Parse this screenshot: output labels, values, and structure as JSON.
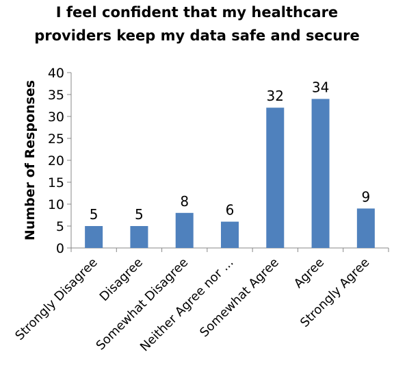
{
  "chart_data": {
    "type": "bar",
    "title_lines": [
      "I feel confident that my healthcare",
      "providers keep my data safe and secure"
    ],
    "ylabel": "Number of Responses",
    "xlabel": "",
    "categories": [
      "Strongly Disagree",
      "Disagree",
      "Somewhat Disagree",
      "Neither Agree nor ...",
      "Somewhat Agree",
      "Agree",
      "Strongly Agree"
    ],
    "values": [
      5,
      5,
      8,
      6,
      32,
      34,
      9
    ],
    "ylim": [
      0,
      40
    ],
    "yticks": [
      0,
      5,
      10,
      15,
      20,
      25,
      30,
      35,
      40
    ],
    "data_labels": true,
    "grid": false,
    "legend": "none",
    "bar_color": "#4F81BD",
    "axis_color": "#878787"
  }
}
